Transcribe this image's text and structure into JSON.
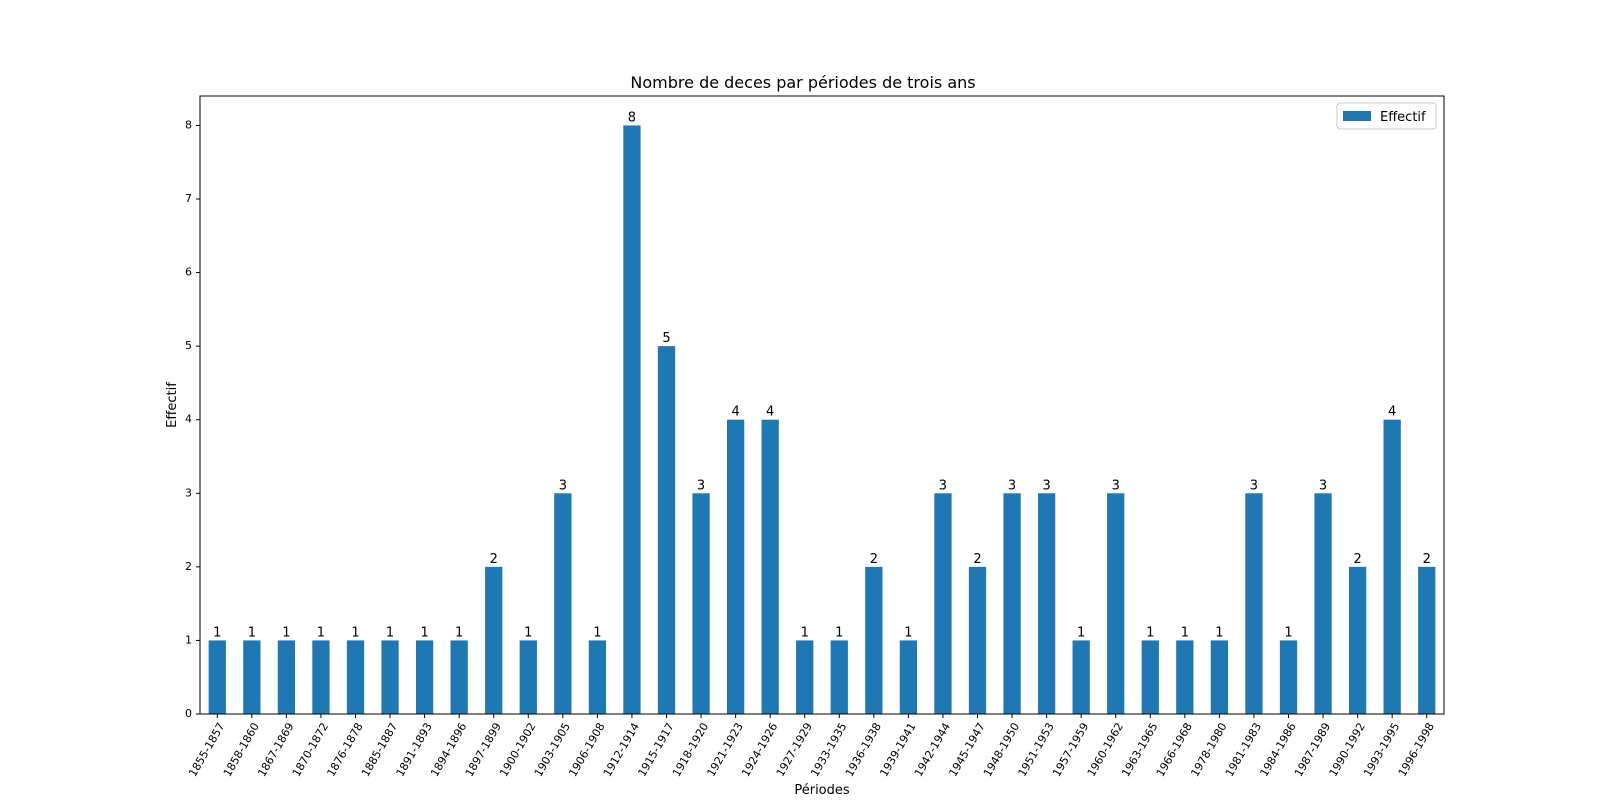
{
  "chart_data": {
    "type": "bar",
    "title": "Nombre de deces par périodes de trois ans",
    "xlabel": "Périodes",
    "ylabel": "Effectif",
    "ylim": [
      0,
      8.4
    ],
    "yticks": [
      0,
      1,
      2,
      3,
      4,
      5,
      6,
      7,
      8
    ],
    "grid": false,
    "legend_position": "top-right",
    "bar_color": "#1f77b4",
    "categories": [
      "1855-1857",
      "1858-1860",
      "1867-1869",
      "1870-1872",
      "1876-1878",
      "1885-1887",
      "1891-1893",
      "1894-1896",
      "1897-1899",
      "1900-1902",
      "1903-1905",
      "1906-1908",
      "1912-1914",
      "1915-1917",
      "1918-1920",
      "1921-1923",
      "1924-1926",
      "1927-1929",
      "1933-1935",
      "1936-1938",
      "1939-1941",
      "1942-1944",
      "1945-1947",
      "1948-1950",
      "1951-1953",
      "1957-1959",
      "1960-1962",
      "1963-1965",
      "1966-1968",
      "1978-1980",
      "1981-1983",
      "1984-1986",
      "1987-1989",
      "1990-1992",
      "1993-1995",
      "1996-1998"
    ],
    "series": [
      {
        "name": "Effectif",
        "values": [
          1,
          1,
          1,
          1,
          1,
          1,
          1,
          1,
          2,
          1,
          3,
          1,
          8,
          5,
          3,
          4,
          4,
          1,
          1,
          2,
          1,
          3,
          2,
          3,
          3,
          1,
          3,
          1,
          1,
          1,
          3,
          1,
          3,
          2,
          4,
          2
        ]
      }
    ]
  }
}
